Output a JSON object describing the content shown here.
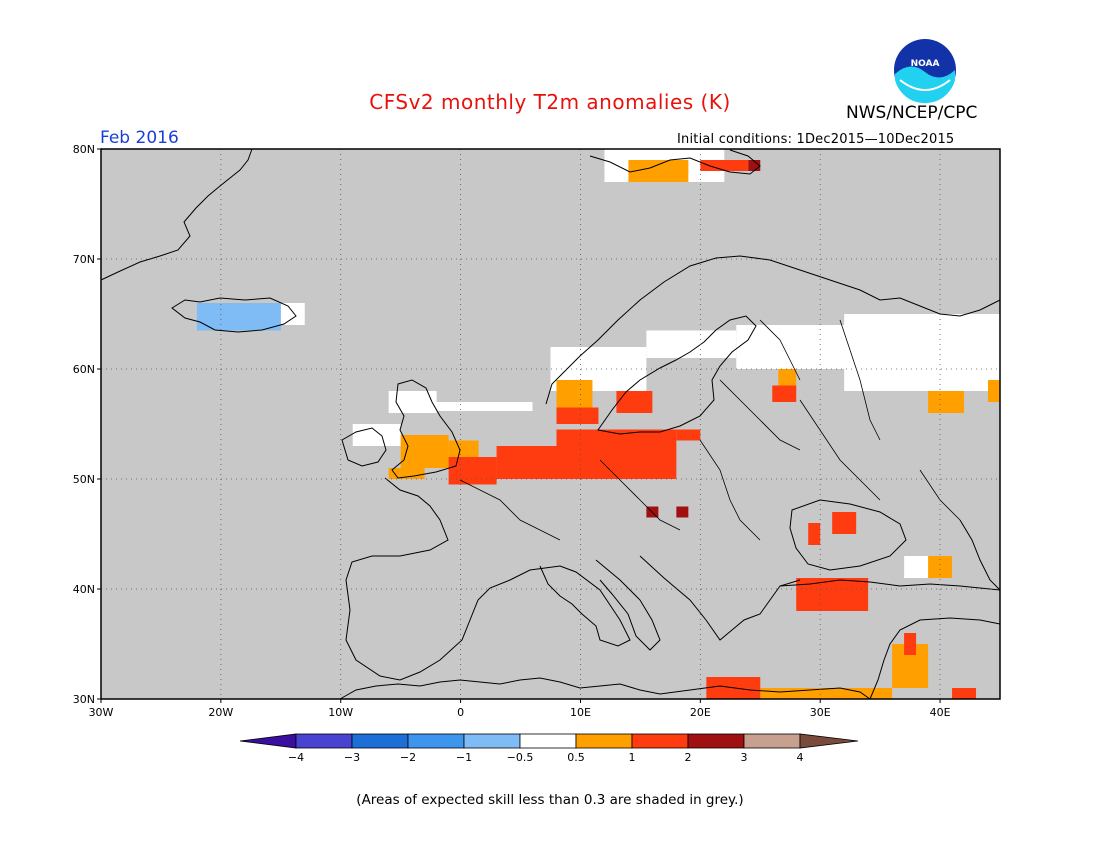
{
  "header": {
    "title": "CFSv2 monthly T2m anomalies (K)",
    "agency": "NWS/NCEP/CPC",
    "month": "Feb 2016",
    "initial_conditions": "Initial conditions: 1Dec2015—10Dec2015",
    "logo_text": "NOAA"
  },
  "footnote": "(Areas of expected skill less than 0.3 are shaded in grey.)",
  "axes": {
    "lon_labels": [
      "30W",
      "20W",
      "10W",
      "0",
      "10E",
      "20E",
      "30E",
      "40E"
    ],
    "lat_labels": [
      "80N",
      "70N",
      "60N",
      "50N",
      "40N",
      "30N"
    ],
    "lon_values": [
      -30,
      -20,
      -10,
      0,
      10,
      20,
      30,
      40
    ],
    "lat_values": [
      80,
      70,
      60,
      50,
      40,
      30
    ],
    "lon_range": [
      -30,
      45
    ],
    "lat_range": [
      30,
      80
    ]
  },
  "colorbar": {
    "labels": [
      "−4",
      "−3",
      "−2",
      "−1",
      "−0.5",
      "0.5",
      "1",
      "2",
      "3",
      "4"
    ],
    "colors": [
      "#3a0fa0",
      "#4a42d0",
      "#1e6ed8",
      "#3e95ee",
      "#7fbcf5",
      "#ffffff",
      "#ffa000",
      "#ff3c10",
      "#a01010",
      "#c8a090",
      "#7a4a3a"
    ]
  },
  "colors": {
    "skill_grey": "#c8c8c8",
    "land_lines": "#000000"
  },
  "anomaly_regions": [
    {
      "level": "white",
      "lon": [
        -5.5,
        6
      ],
      "lat": [
        57,
        57
      ]
    },
    {
      "level": "white",
      "lon": [
        7.5,
        15.5
      ],
      "lat": [
        58,
        62
      ]
    },
    {
      "level": "white",
      "lon": [
        15.5,
        23
      ],
      "lat": [
        61,
        63.5
      ]
    },
    {
      "level": "white",
      "lon": [
        23,
        34
      ],
      "lat": [
        60,
        64
      ]
    },
    {
      "level": "white",
      "lon": [
        32,
        45
      ],
      "lat": [
        58,
        65
      ]
    },
    {
      "level": "white",
      "lon": [
        -9,
        -5
      ],
      "lat": [
        53,
        55
      ]
    },
    {
      "level": "white",
      "lon": [
        -6,
        -2
      ],
      "lat": [
        56,
        58
      ]
    },
    {
      "level": "white",
      "lon": [
        -15,
        -13
      ],
      "lat": [
        64,
        66
      ]
    },
    {
      "level": "white",
      "lon": [
        12,
        22
      ],
      "lat": [
        77,
        80
      ]
    },
    {
      "level": "white",
      "lon": [
        37,
        41
      ],
      "lat": [
        41,
        43
      ]
    },
    {
      "level": "lightblue",
      "lon": [
        -22,
        -15
      ],
      "lat": [
        63.5,
        66
      ]
    },
    {
      "level": "orange",
      "lon": [
        -5,
        -1
      ],
      "lat": [
        51,
        54
      ]
    },
    {
      "level": "orange",
      "lon": [
        -1,
        1.5
      ],
      "lat": [
        51.5,
        53.5
      ]
    },
    {
      "level": "orange",
      "lon": [
        -6,
        -3
      ],
      "lat": [
        50,
        51
      ]
    },
    {
      "level": "orange",
      "lon": [
        8,
        11
      ],
      "lat": [
        56,
        59
      ]
    },
    {
      "level": "orange",
      "lon": [
        14,
        19
      ],
      "lat": [
        77,
        79
      ]
    },
    {
      "level": "orange",
      "lon": [
        26.5,
        28
      ],
      "lat": [
        58,
        60
      ]
    },
    {
      "level": "orange",
      "lon": [
        39,
        42
      ],
      "lat": [
        56,
        58
      ]
    },
    {
      "level": "orange",
      "lon": [
        44,
        45
      ],
      "lat": [
        57,
        59
      ]
    },
    {
      "level": "orange",
      "lon": [
        25,
        36
      ],
      "lat": [
        30,
        31
      ]
    },
    {
      "level": "orange",
      "lon": [
        36,
        39
      ],
      "lat": [
        31,
        35
      ]
    },
    {
      "level": "orange",
      "lon": [
        39,
        41
      ],
      "lat": [
        41,
        43
      ]
    },
    {
      "level": "red",
      "lon": [
        -1,
        3
      ],
      "lat": [
        49.5,
        52
      ]
    },
    {
      "level": "red",
      "lon": [
        3,
        8
      ],
      "lat": [
        50,
        53
      ]
    },
    {
      "level": "red",
      "lon": [
        8,
        18
      ],
      "lat": [
        50,
        54.5
      ]
    },
    {
      "level": "red",
      "lon": [
        18,
        20
      ],
      "lat": [
        53.5,
        54.5
      ]
    },
    {
      "level": "red",
      "lon": [
        13,
        16
      ],
      "lat": [
        56,
        58
      ]
    },
    {
      "level": "red",
      "lon": [
        8,
        11.5
      ],
      "lat": [
        55,
        56.5
      ]
    },
    {
      "level": "red",
      "lon": [
        26,
        28
      ],
      "lat": [
        57,
        58.5
      ]
    },
    {
      "level": "red",
      "lon": [
        31,
        33
      ],
      "lat": [
        45,
        47
      ]
    },
    {
      "level": "red",
      "lon": [
        28,
        34
      ],
      "lat": [
        38,
        41
      ]
    },
    {
      "level": "red",
      "lon": [
        20.5,
        25
      ],
      "lat": [
        30,
        32
      ]
    },
    {
      "level": "red",
      "lon": [
        37,
        38
      ],
      "lat": [
        34,
        36
      ]
    },
    {
      "level": "red",
      "lon": [
        41,
        43
      ],
      "lat": [
        30,
        31
      ]
    },
    {
      "level": "red",
      "lon": [
        20,
        24
      ],
      "lat": [
        78,
        79
      ]
    },
    {
      "level": "red",
      "lon": [
        29,
        30
      ],
      "lat": [
        44,
        46
      ]
    },
    {
      "level": "darkred",
      "lon": [
        15.5,
        16.5
      ],
      "lat": [
        46.5,
        47.5
      ]
    },
    {
      "level": "darkred",
      "lon": [
        18,
        19
      ],
      "lat": [
        46.5,
        47.5
      ]
    },
    {
      "level": "darkred",
      "lon": [
        24,
        25
      ],
      "lat": [
        78,
        79
      ]
    }
  ]
}
